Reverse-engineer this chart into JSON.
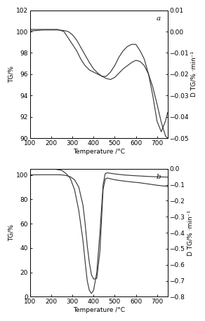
{
  "panel_a": {
    "label": "a",
    "tg": {
      "x": [
        100,
        130,
        160,
        200,
        230,
        260,
        280,
        300,
        320,
        340,
        360,
        380,
        400,
        420,
        440,
        460,
        480,
        500,
        520,
        540,
        560,
        580,
        600,
        620,
        640,
        660,
        680,
        700,
        720,
        740,
        750
      ],
      "y": [
        100.05,
        100.1,
        100.15,
        100.15,
        100.15,
        100.1,
        100.0,
        99.7,
        99.2,
        98.5,
        97.8,
        97.1,
        96.5,
        96.1,
        95.8,
        95.6,
        95.5,
        95.7,
        96.1,
        96.5,
        96.8,
        97.1,
        97.3,
        97.2,
        96.8,
        96.0,
        94.8,
        93.2,
        91.5,
        90.2,
        90.0
      ]
    },
    "dtg": {
      "x": [
        100,
        130,
        160,
        200,
        230,
        260,
        280,
        300,
        320,
        340,
        360,
        380,
        400,
        420,
        440,
        460,
        480,
        500,
        520,
        540,
        560,
        580,
        600,
        620,
        640,
        660,
        680,
        700,
        720,
        740,
        750
      ],
      "y": [
        0.001,
        0.001,
        0.001,
        0.001,
        0.001,
        0.0,
        -0.003,
        -0.006,
        -0.009,
        -0.013,
        -0.016,
        -0.018,
        -0.019,
        -0.02,
        -0.021,
        -0.021,
        -0.019,
        -0.016,
        -0.012,
        -0.009,
        -0.007,
        -0.006,
        -0.006,
        -0.009,
        -0.013,
        -0.02,
        -0.03,
        -0.042,
        -0.047,
        -0.042,
        -0.038
      ]
    },
    "tg_ylim": [
      90,
      102
    ],
    "dtg_ylim": [
      -0.05,
      0.01
    ],
    "tg_yticks": [
      90,
      92,
      94,
      96,
      98,
      100,
      102
    ],
    "dtg_yticks": [
      -0.05,
      -0.04,
      -0.03,
      -0.02,
      -0.01,
      0.0,
      0.01
    ],
    "xlabel": "Temperature /°C",
    "ylabel_left": "TG/%",
    "ylabel_right": "D TG/% ·min⁻¹"
  },
  "panel_b": {
    "label": "b",
    "tg": {
      "x": [
        100,
        150,
        200,
        230,
        250,
        270,
        290,
        310,
        330,
        350,
        360,
        370,
        380,
        390,
        400,
        415,
        430,
        445,
        455,
        465,
        480,
        500,
        540,
        580,
        620,
        660,
        700,
        750
      ],
      "y": [
        100.0,
        100.1,
        100.1,
        100.1,
        100.0,
        99.5,
        98.5,
        96.0,
        90.0,
        75.0,
        60.0,
        42.0,
        28.0,
        18.0,
        14.5,
        15.0,
        37.0,
        88.0,
        96.5,
        97.5,
        96.8,
        96.0,
        95.0,
        94.2,
        93.5,
        92.5,
        91.5,
        90.5
      ]
    },
    "dtg": {
      "x": [
        100,
        150,
        200,
        230,
        250,
        270,
        290,
        310,
        330,
        350,
        360,
        370,
        380,
        390,
        400,
        415,
        430,
        445,
        455,
        465,
        480,
        500,
        540,
        580,
        620,
        660,
        700,
        750
      ],
      "y": [
        0.0,
        0.0,
        0.0,
        -0.005,
        -0.01,
        -0.03,
        -0.06,
        -0.13,
        -0.26,
        -0.45,
        -0.58,
        -0.7,
        -0.76,
        -0.78,
        -0.76,
        -0.65,
        -0.4,
        -0.1,
        -0.03,
        -0.025,
        -0.028,
        -0.032,
        -0.038,
        -0.042,
        -0.045,
        -0.048,
        -0.05,
        -0.052
      ]
    },
    "tg_ylim": [
      0,
      105
    ],
    "dtg_ylim": [
      -0.8,
      0.0
    ],
    "tg_yticks": [
      0,
      20,
      40,
      60,
      80,
      100
    ],
    "dtg_yticks": [
      -0.8,
      -0.7,
      -0.6,
      -0.5,
      -0.4,
      -0.3,
      -0.2,
      -0.1,
      0.0
    ],
    "xlabel": "Temperature /°C",
    "ylabel_left": "TG/%",
    "ylabel_right": "D TG/% ·min⁻¹"
  },
  "xlim": [
    100,
    750
  ],
  "xticks": [
    100,
    200,
    300,
    400,
    500,
    600,
    700
  ],
  "line_color": "#3a3a3a",
  "bg_color": "#ffffff",
  "font_size": 6.5
}
